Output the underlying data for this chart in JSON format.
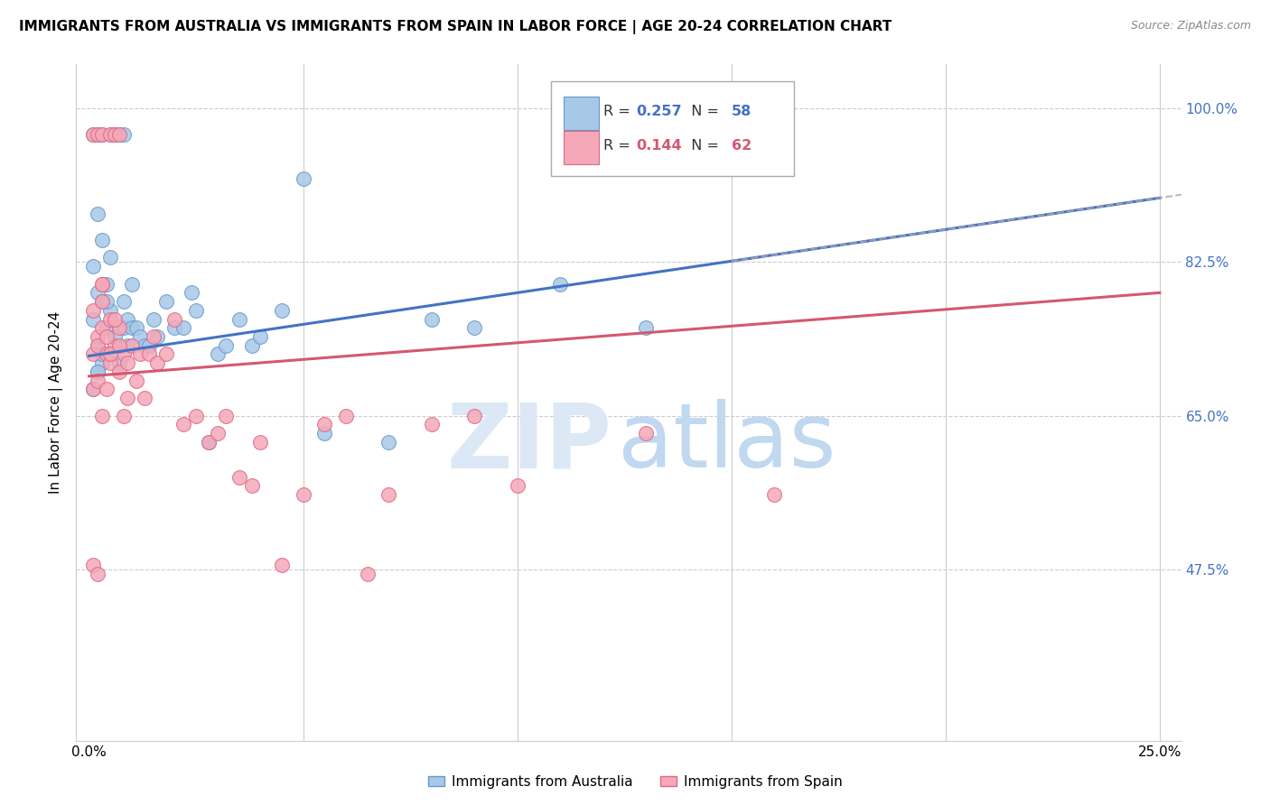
{
  "title": "IMMIGRANTS FROM AUSTRALIA VS IMMIGRANTS FROM SPAIN IN LABOR FORCE | AGE 20-24 CORRELATION CHART",
  "source": "Source: ZipAtlas.com",
  "ylabel": "In Labor Force | Age 20-24",
  "xlim": [
    0.0,
    0.25
  ],
  "ylim": [
    0.28,
    1.05
  ],
  "yticks": [
    0.475,
    0.65,
    0.825,
    1.0
  ],
  "ytick_labels": [
    "47.5%",
    "65.0%",
    "82.5%",
    "100.0%"
  ],
  "xticks": [
    0.0,
    0.05,
    0.1,
    0.15,
    0.2,
    0.25
  ],
  "xtick_labels": [
    "0.0%",
    "",
    "",
    "",
    "",
    "25.0%"
  ],
  "australia_color": "#a8c8e8",
  "spain_color": "#f4a8b8",
  "australia_edge": "#6699cc",
  "spain_edge": "#e06888",
  "trend_blue": "#4472c4",
  "trend_pink": "#d45870",
  "R_australia": 0.257,
  "N_australia": 58,
  "R_spain": 0.144,
  "N_spain": 62,
  "legend_label_australia": "Immigrants from Australia",
  "legend_label_spain": "Immigrants from Spain",
  "aus_trend_intercept": 0.718,
  "aus_trend_slope": 0.72,
  "spain_trend_intercept": 0.695,
  "spain_trend_slope": 0.38,
  "aus_x": [
    0.001,
    0.001,
    0.001,
    0.002,
    0.002,
    0.002,
    0.002,
    0.003,
    0.003,
    0.003,
    0.003,
    0.004,
    0.004,
    0.005,
    0.005,
    0.005,
    0.006,
    0.006,
    0.007,
    0.007,
    0.008,
    0.008,
    0.008,
    0.009,
    0.009,
    0.01,
    0.01,
    0.011,
    0.012,
    0.013,
    0.014,
    0.015,
    0.016,
    0.018,
    0.02,
    0.022,
    0.024,
    0.025,
    0.028,
    0.03,
    0.032,
    0.035,
    0.038,
    0.04,
    0.045,
    0.05,
    0.055,
    0.07,
    0.08,
    0.09,
    0.11,
    0.13,
    0.001,
    0.002,
    0.003,
    0.004,
    0.003,
    0.002
  ],
  "aus_y": [
    0.76,
    0.82,
    0.97,
    0.73,
    0.79,
    0.88,
    0.97,
    0.85,
    0.78,
    0.72,
    0.97,
    0.75,
    0.8,
    0.97,
    0.83,
    0.77,
    0.97,
    0.74,
    0.97,
    0.71,
    0.97,
    0.75,
    0.78,
    0.73,
    0.76,
    0.75,
    0.8,
    0.75,
    0.74,
    0.73,
    0.73,
    0.76,
    0.74,
    0.78,
    0.75,
    0.75,
    0.79,
    0.77,
    0.62,
    0.72,
    0.73,
    0.76,
    0.73,
    0.74,
    0.77,
    0.92,
    0.63,
    0.62,
    0.76,
    0.75,
    0.8,
    0.75,
    0.68,
    0.7,
    0.71,
    0.78,
    0.72,
    0.7
  ],
  "spain_x": [
    0.001,
    0.001,
    0.001,
    0.001,
    0.002,
    0.002,
    0.002,
    0.002,
    0.003,
    0.003,
    0.003,
    0.003,
    0.004,
    0.004,
    0.005,
    0.005,
    0.005,
    0.006,
    0.006,
    0.007,
    0.007,
    0.007,
    0.008,
    0.008,
    0.009,
    0.009,
    0.01,
    0.011,
    0.012,
    0.013,
    0.014,
    0.015,
    0.016,
    0.018,
    0.02,
    0.022,
    0.025,
    0.028,
    0.03,
    0.032,
    0.035,
    0.038,
    0.04,
    0.045,
    0.05,
    0.055,
    0.06,
    0.065,
    0.07,
    0.08,
    0.09,
    0.1,
    0.13,
    0.16,
    0.001,
    0.002,
    0.003,
    0.003,
    0.004,
    0.005,
    0.006,
    0.007
  ],
  "spain_y": [
    0.72,
    0.68,
    0.77,
    0.97,
    0.74,
    0.69,
    0.73,
    0.97,
    0.8,
    0.75,
    0.65,
    0.97,
    0.72,
    0.68,
    0.97,
    0.76,
    0.71,
    0.97,
    0.73,
    0.97,
    0.75,
    0.7,
    0.72,
    0.65,
    0.67,
    0.71,
    0.73,
    0.69,
    0.72,
    0.67,
    0.72,
    0.74,
    0.71,
    0.72,
    0.76,
    0.64,
    0.65,
    0.62,
    0.63,
    0.65,
    0.58,
    0.57,
    0.62,
    0.48,
    0.56,
    0.64,
    0.65,
    0.47,
    0.56,
    0.64,
    0.65,
    0.57,
    0.63,
    0.56,
    0.48,
    0.47,
    0.78,
    0.8,
    0.74,
    0.72,
    0.76,
    0.73
  ]
}
